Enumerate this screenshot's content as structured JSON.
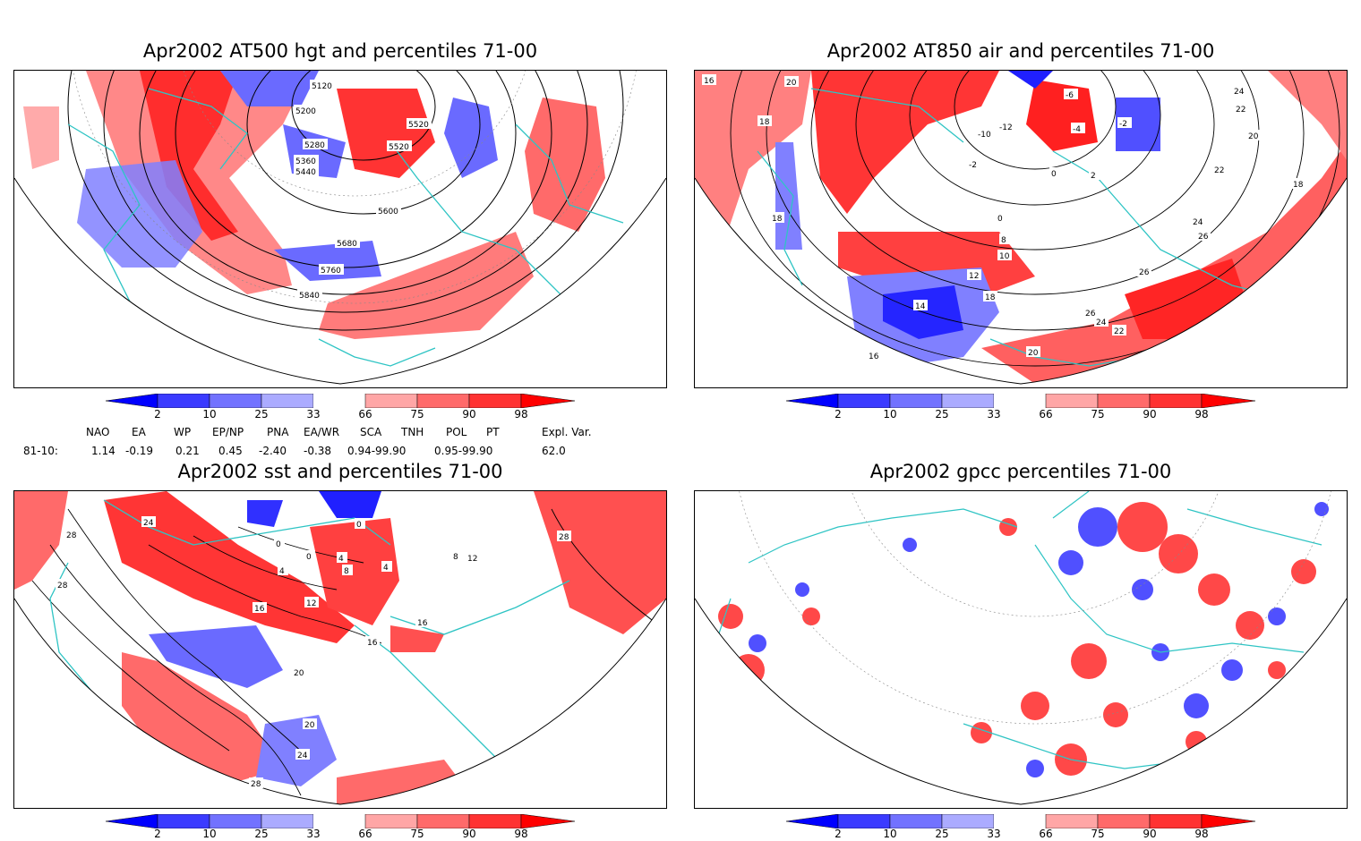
{
  "panels": [
    {
      "title": "Apr2002 AT500 hgt and percentiles 71-00",
      "contour_labels": [
        "5120",
        "5200",
        "5280",
        "5360",
        "5440",
        "5520",
        "5520",
        "5600",
        "5680",
        "5760",
        "5840"
      ]
    },
    {
      "title": "Apr2002 AT850 air and percentiles 71-00",
      "contour_labels": [
        "16",
        "20",
        "18",
        "18",
        "-10",
        "-12",
        "-6",
        "-4",
        "-2",
        "-2",
        "0",
        "2",
        "24",
        "22",
        "20",
        "22",
        "18",
        "0",
        "8",
        "10",
        "12",
        "18",
        "14",
        "16",
        "24",
        "26",
        "26",
        "26",
        "24",
        "22",
        "20"
      ]
    },
    {
      "title": "Apr2002 sst and percentiles 71-00",
      "contour_labels": [
        "28",
        "24",
        "28",
        "0",
        "0",
        "4",
        "8",
        "4",
        "4",
        "0",
        "16",
        "12",
        "16",
        "16",
        "20",
        "20",
        "24",
        "28",
        "28",
        "8",
        "12"
      ]
    },
    {
      "title": "Apr2002 gpcc percentiles 71-00",
      "contour_labels": []
    }
  ],
  "colorbar": {
    "labels": [
      "2",
      "10",
      "25",
      "33",
      "66",
      "75",
      "90",
      "98"
    ],
    "colors": [
      "#0000ff",
      "#3b3bff",
      "#7272ff",
      "#ababff",
      "#ffffff",
      "#ffa6a6",
      "#ff6a6a",
      "#ff3232",
      "#ff0000"
    ]
  },
  "teleconnections": {
    "headers": [
      "NAO",
      "EA",
      "WP",
      "EP/NP",
      "PNA",
      "EA/WR",
      "SCA",
      "TNH",
      "POL",
      "PT",
      "Expl. Var."
    ],
    "row_label": "81-10:",
    "values": [
      "1.14",
      "-0.19",
      "0.21",
      "0.45",
      "-2.40",
      "-0.38",
      "0.94-99.90",
      "",
      "0.95-99.90",
      "",
      "62.0"
    ]
  },
  "map_colors": {
    "coast": "#2ec4c4",
    "warm": "#ff3333",
    "cool": "#5a5aff"
  }
}
